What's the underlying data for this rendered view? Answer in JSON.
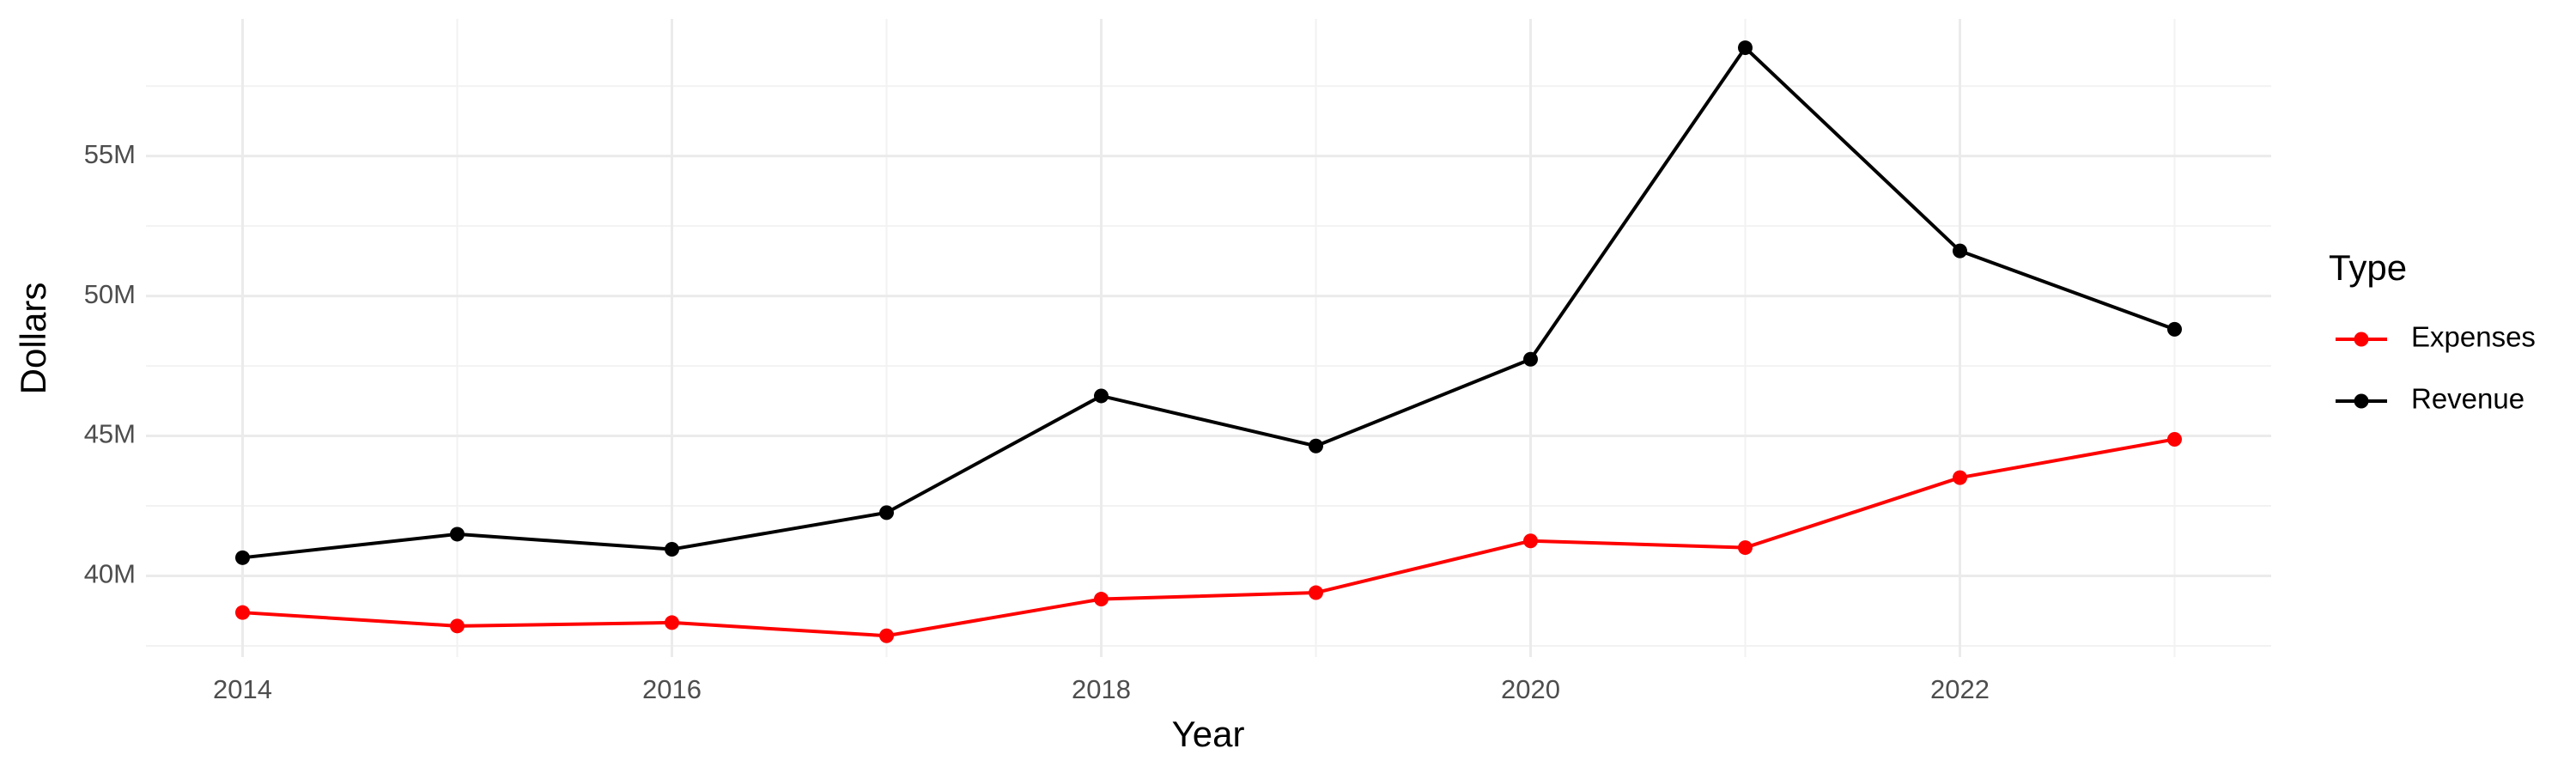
{
  "chart_data": {
    "type": "line",
    "x_label": "Year",
    "y_label": "Dollars",
    "legend_title": "Type",
    "legend_position": "right",
    "x": [
      2014,
      2015,
      2016,
      2017,
      2018,
      2019,
      2020,
      2021,
      2022,
      2023
    ],
    "series": [
      {
        "name": "Expenses",
        "color": "#ff0000",
        "values": [
          38690000,
          38210000,
          38330000,
          37860000,
          39170000,
          39400000,
          41250000,
          41010000,
          43510000,
          44880000
        ]
      },
      {
        "name": "Revenue",
        "color": "#000000",
        "values": [
          40650000,
          41490000,
          40950000,
          42260000,
          46430000,
          44640000,
          47740000,
          58870000,
          51610000,
          48810000
        ]
      }
    ],
    "xlim": [
      2013.55,
      2023.45
    ],
    "xticks": [
      2014,
      2016,
      2018,
      2020,
      2022
    ],
    "ylim": [
      37100000,
      59900000
    ],
    "yticks": [
      {
        "value": 40000000,
        "label": "40M"
      },
      {
        "value": 45000000,
        "label": "45M"
      },
      {
        "value": 50000000,
        "label": "50M"
      },
      {
        "value": 55000000,
        "label": "55M"
      }
    ],
    "grid": true
  }
}
